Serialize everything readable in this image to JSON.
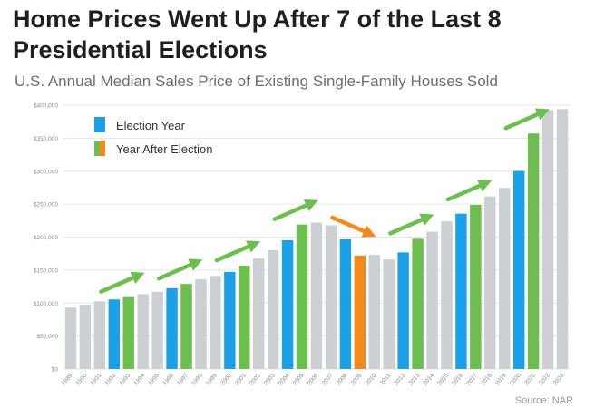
{
  "title": "Home Prices Went Up After 7 of the Last 8 Presidential Elections",
  "subtitle": "U.S. Annual Median Sales Price of Existing Single-Family Houses Sold",
  "source": "Source: NAR",
  "chart_data": {
    "type": "bar",
    "categories": [
      "1989",
      "1990",
      "1991",
      "1992",
      "1993",
      "1994",
      "1995",
      "1996",
      "1997",
      "1998",
      "1999",
      "2000",
      "2001",
      "2002",
      "2003",
      "2004",
      "2005",
      "2006",
      "2007",
      "2008",
      "2009",
      "2010",
      "2011",
      "2012",
      "2013",
      "2014",
      "2015",
      "2016",
      "2017",
      "2018",
      "2019",
      "2020",
      "2021",
      "2022",
      "2023"
    ],
    "values": [
      93100,
      97500,
      102700,
      105500,
      109100,
      113500,
      117000,
      122600,
      129000,
      136000,
      141200,
      147300,
      156600,
      167600,
      180200,
      195200,
      219000,
      221900,
      217900,
      196600,
      172100,
      173100,
      166200,
      176800,
      197400,
      208300,
      223900,
      235500,
      248800,
      261600,
      274600,
      300200,
      357100,
      392800,
      394100
    ],
    "bar_types": [
      "none",
      "none",
      "none",
      "election",
      "after-up",
      "none",
      "none",
      "election",
      "after-up",
      "none",
      "none",
      "election",
      "after-up",
      "none",
      "none",
      "election",
      "after-up",
      "none",
      "none",
      "election",
      "after-down",
      "none",
      "none",
      "election",
      "after-up",
      "none",
      "none",
      "election",
      "after-up",
      "none",
      "none",
      "election",
      "after-up",
      "none",
      "none"
    ],
    "arrows": [
      {
        "from": "1992",
        "to": "1993",
        "direction": "up"
      },
      {
        "from": "1996",
        "to": "1997",
        "direction": "up"
      },
      {
        "from": "2000",
        "to": "2001",
        "direction": "up"
      },
      {
        "from": "2004",
        "to": "2005",
        "direction": "up"
      },
      {
        "from": "2008",
        "to": "2009",
        "direction": "down"
      },
      {
        "from": "2012",
        "to": "2013",
        "direction": "up"
      },
      {
        "from": "2016",
        "to": "2017",
        "direction": "up"
      },
      {
        "from": "2020",
        "to": "2021",
        "direction": "up"
      }
    ],
    "yticks": [
      0,
      50000,
      100000,
      150000,
      200000,
      250000,
      300000,
      350000,
      400000
    ],
    "ytick_labels": [
      "$0",
      "$50,000",
      "$100,000",
      "$150,000",
      "$200,000",
      "$250,000",
      "$300,000",
      "$350,000",
      "$400,000"
    ],
    "ylim": [
      0,
      400000
    ],
    "grid": true,
    "legend_placement": "top-left",
    "legend": [
      {
        "label": "Election Year",
        "colors": [
          "#1ba1e8"
        ]
      },
      {
        "label": "Year After Election",
        "colors": [
          "#6cbf4f",
          "#f48a1c"
        ]
      }
    ],
    "colors": {
      "none": "#ccd0d3",
      "election": "#1ba1e8",
      "after-up": "#6cbf4f",
      "after-down": "#f48a1c",
      "arrow-up": "#6cbf4f",
      "arrow-down": "#f48a1c"
    }
  }
}
